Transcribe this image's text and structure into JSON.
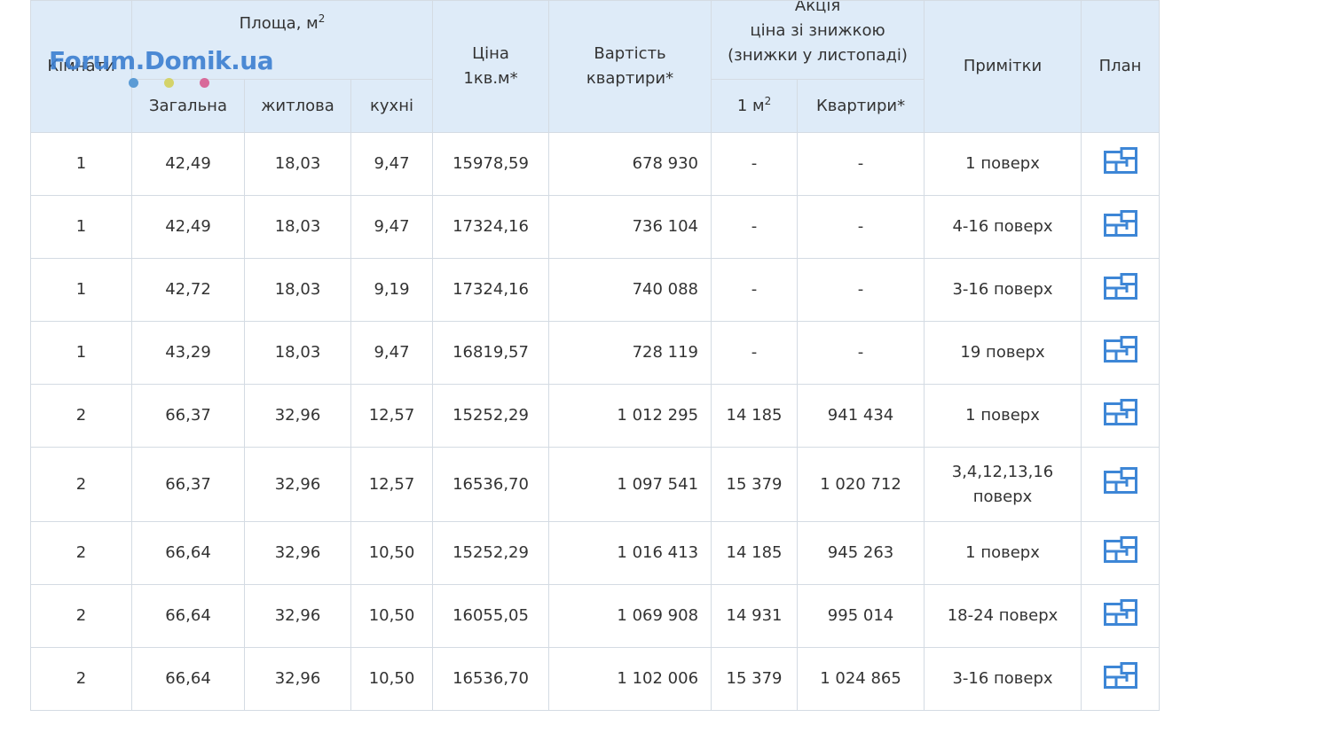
{
  "header": {
    "rooms": "Кімнати",
    "area_prefix": "Площа, м",
    "area_sup": "2",
    "price_line1": "Ціна",
    "price_line2": "1кв.м*",
    "cost_line1": "Вартість",
    "cost_line2": "квартири*",
    "promo_line0": "Акція",
    "promo_line1": "ціна зі знижкою",
    "promo_line2": "(знижки у листопаді)",
    "notes": "Примітки",
    "plan": "План",
    "area_total": "Загальна",
    "area_living": "житлова",
    "area_kitchen": "кухні",
    "promo_m2_prefix": "1 м",
    "promo_m2_sup": "2",
    "promo_apartment": "Квартири*"
  },
  "watermark": {
    "text": "Forum.Domik.ua",
    "dot_colors": [
      "#5b9bd5",
      "#d4d36a",
      "#d86a9a"
    ]
  },
  "rows": [
    {
      "rooms": "1",
      "total": "42,49",
      "living": "18,03",
      "kitchen": "9,47",
      "price": "15978,59",
      "cost": "678 930",
      "promo_m2": "-",
      "promo_apt": "-",
      "notes": "1 поверх"
    },
    {
      "rooms": "1",
      "total": "42,49",
      "living": "18,03",
      "kitchen": "9,47",
      "price": "17324,16",
      "cost": "736 104",
      "promo_m2": "-",
      "promo_apt": "-",
      "notes": "4-16 поверх"
    },
    {
      "rooms": "1",
      "total": "42,72",
      "living": "18,03",
      "kitchen": "9,19",
      "price": "17324,16",
      "cost": "740 088",
      "promo_m2": "-",
      "promo_apt": "-",
      "notes": "3-16 поверх"
    },
    {
      "rooms": "1",
      "total": "43,29",
      "living": "18,03",
      "kitchen": "9,47",
      "price": "16819,57",
      "cost": "728 119",
      "promo_m2": "-",
      "promo_apt": "-",
      "notes": "19 поверх"
    },
    {
      "rooms": "2",
      "total": "66,37",
      "living": "32,96",
      "kitchen": "12,57",
      "price": "15252,29",
      "cost": "1 012 295",
      "promo_m2": "14 185",
      "promo_apt": "941 434",
      "notes": "1 поверх"
    },
    {
      "rooms": "2",
      "total": "66,37",
      "living": "32,96",
      "kitchen": "12,57",
      "price": "16536,70",
      "cost": "1 097 541",
      "promo_m2": "15 379",
      "promo_apt": "1 020 712",
      "notes_line1": "3,4,12,13,16",
      "notes_line2": "поверх"
    },
    {
      "rooms": "2",
      "total": "66,64",
      "living": "32,96",
      "kitchen": "10,50",
      "price": "15252,29",
      "cost": "1 016 413",
      "promo_m2": "14 185",
      "promo_apt": "945 263",
      "notes": "1 поверх"
    },
    {
      "rooms": "2",
      "total": "66,64",
      "living": "32,96",
      "kitchen": "10,50",
      "price": "16055,05",
      "cost": "1 069 908",
      "promo_m2": "14 931",
      "promo_apt": "995 014",
      "notes": "18-24 поверх"
    },
    {
      "rooms": "2",
      "total": "66,64",
      "living": "32,96",
      "kitchen": "10,50",
      "price": "16536,70",
      "cost": "1 102 006",
      "promo_m2": "15 379",
      "promo_apt": "1 024 865",
      "notes": "3-16 поверх"
    }
  ],
  "icons": {
    "plan": "floor-plan-icon"
  },
  "colors": {
    "header_bg": "#deebf8",
    "border": "#d4dbe3",
    "icon": "#3d86d6",
    "watermark": "#3c7fd1"
  }
}
